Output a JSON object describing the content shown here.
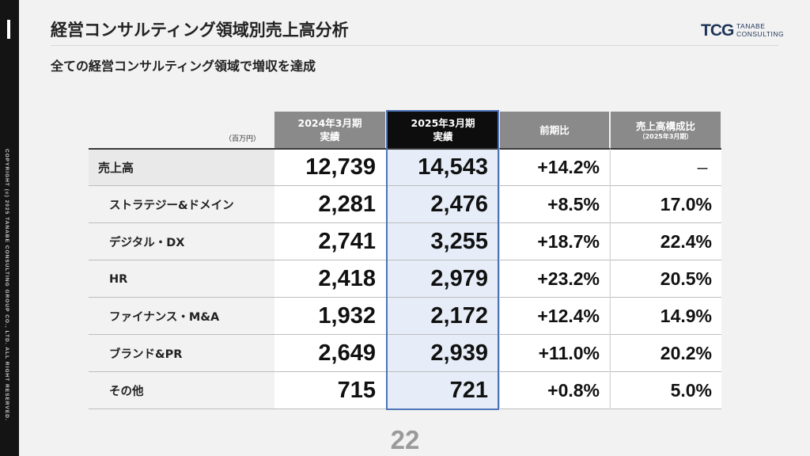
{
  "sidebar": {
    "copyright": "COPYRIGHT (c) 2025 TANABE CONSULTING GROUP CO., LTD. ALL RIGHT RESERVED."
  },
  "header": {
    "title": "経営コンサルティング領域別売上高分析",
    "subtitle": "全ての経営コンサルティング領域で増収を達成",
    "logo_mark": "TCG",
    "logo_text_1": "TANABE",
    "logo_text_2": "CONSULTING",
    "brand_color": "#1d3557"
  },
  "table": {
    "unit": "（百万円）",
    "columns": [
      {
        "line1": "2024年3月期",
        "line2": "実績"
      },
      {
        "line1": "2025年3月期",
        "line2": "実績"
      },
      {
        "line1": "前期比",
        "line2": ""
      },
      {
        "line1": "売上高構成比",
        "line2": "（2025年3月期）"
      }
    ],
    "rows": [
      {
        "label": "売上高",
        "fy2024": "12,739",
        "fy2025": "14,543",
        "yoy": "+14.2%",
        "share": "ー"
      },
      {
        "label": "ストラテジー&ドメイン",
        "fy2024": "2,281",
        "fy2025": "2,476",
        "yoy": "+8.5%",
        "share": "17.0%"
      },
      {
        "label": "デジタル・DX",
        "fy2024": "2,741",
        "fy2025": "3,255",
        "yoy": "+18.7%",
        "share": "22.4%"
      },
      {
        "label": "HR",
        "fy2024": "2,418",
        "fy2025": "2,979",
        "yoy": "+23.2%",
        "share": "20.5%"
      },
      {
        "label": "ファイナンス・M&A",
        "fy2024": "1,932",
        "fy2025": "2,172",
        "yoy": "+12.4%",
        "share": "14.9%"
      },
      {
        "label": "ブランド&PR",
        "fy2024": "2,649",
        "fy2025": "2,939",
        "yoy": "+11.0%",
        "share": "20.2%"
      },
      {
        "label": "その他",
        "fy2024": "715",
        "fy2025": "721",
        "yoy": "+0.8%",
        "share": "5.0%"
      }
    ],
    "highlight_color": "#4e74b8",
    "header_color": "#8a8a8a"
  },
  "footer": {
    "page_number": "22"
  }
}
